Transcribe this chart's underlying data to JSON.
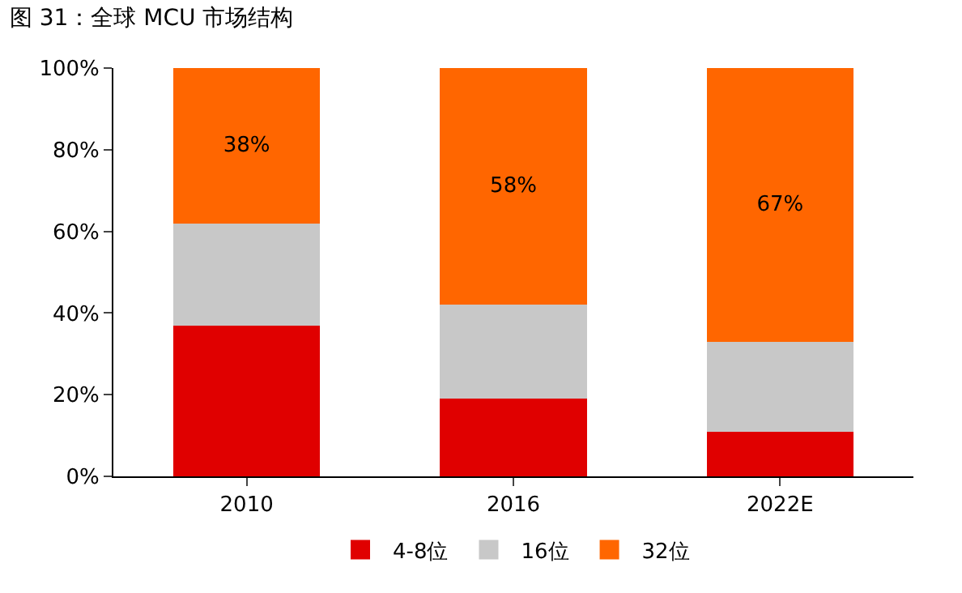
{
  "chart_data": {
    "type": "bar",
    "title": "图 31：全球 MCU 市场结构",
    "stacked": true,
    "categories": [
      "2010",
      "2016",
      "2022E"
    ],
    "series": [
      {
        "name": "4-8位",
        "color": "#e00000",
        "values": [
          37,
          19,
          11
        ]
      },
      {
        "name": "16位",
        "color": "#c8c8c8",
        "values": [
          25,
          23,
          22
        ]
      },
      {
        "name": "32位",
        "color": "#ff6600",
        "values": [
          38,
          58,
          67
        ],
        "value_labels": [
          "38%",
          "58%",
          "67%"
        ]
      }
    ],
    "ylim": [
      0,
      100
    ],
    "yticks": [
      {
        "value": 0,
        "label": "0%"
      },
      {
        "value": 20,
        "label": "20%"
      },
      {
        "value": 40,
        "label": "40%"
      },
      {
        "value": 60,
        "label": "60%"
      },
      {
        "value": 80,
        "label": "80%"
      },
      {
        "value": 100,
        "label": "100%"
      }
    ],
    "grid": false,
    "legend": "bottom"
  }
}
